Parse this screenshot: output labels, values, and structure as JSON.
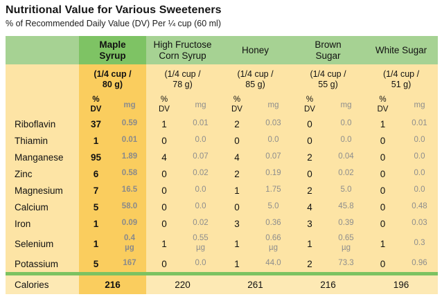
{
  "title": "Nutritional Value for Various Sweeteners",
  "subtitle": "% of Recommended Daily Value (DV) Per ¼ cup (60 ml)",
  "colors": {
    "header_green": "#a6d293",
    "maple_header_green": "#7ec364",
    "maple_column_yellow": "#facd5e",
    "body_yellow": "#fde4a5",
    "calories_yellow": "#fde9b4",
    "divider_green": "#7cc261",
    "mg_text_gray": "#8d8d8d"
  },
  "columns": [
    {
      "name": "Maple\nSyrup",
      "serving": "(1/4 cup /\n80 g)"
    },
    {
      "name": "High Fructose\nCorn Syrup",
      "serving": "(1/4 cup /\n78 g)"
    },
    {
      "name": "Honey",
      "serving": "(1/4 cup /\n85 g)"
    },
    {
      "name": "Brown\nSugar",
      "serving": "(1/4 cup /\n55 g)"
    },
    {
      "name": "White Sugar",
      "serving": "(1/4 cup /\n51 g)"
    }
  ],
  "subheader": {
    "dv": "%\nDV",
    "unit": "mg"
  },
  "rows": [
    {
      "name": "Riboflavin",
      "cells": [
        {
          "dv": "37",
          "mg": "0.59"
        },
        {
          "dv": "1",
          "mg": "0.01"
        },
        {
          "dv": "2",
          "mg": "0.03"
        },
        {
          "dv": "0",
          "mg": "0.0"
        },
        {
          "dv": "1",
          "mg": "0.01"
        }
      ]
    },
    {
      "name": "Thiamin",
      "cells": [
        {
          "dv": "1",
          "mg": "0.01"
        },
        {
          "dv": "0",
          "mg": "0.0"
        },
        {
          "dv": "0",
          "mg": "0.0"
        },
        {
          "dv": "0",
          "mg": "0.0"
        },
        {
          "dv": "0",
          "mg": "0.0"
        }
      ]
    },
    {
      "name": "Manganese",
      "cells": [
        {
          "dv": "95",
          "mg": "1.89"
        },
        {
          "dv": "4",
          "mg": "0.07"
        },
        {
          "dv": "4",
          "mg": "0.07"
        },
        {
          "dv": "2",
          "mg": "0.04"
        },
        {
          "dv": "0",
          "mg": "0.0"
        }
      ]
    },
    {
      "name": "Zinc",
      "cells": [
        {
          "dv": "6",
          "mg": "0.58"
        },
        {
          "dv": "0",
          "mg": "0.02"
        },
        {
          "dv": "2",
          "mg": "0.19"
        },
        {
          "dv": "0",
          "mg": "0.02"
        },
        {
          "dv": "0",
          "mg": "0.0"
        }
      ]
    },
    {
      "name": "Magnesium",
      "cells": [
        {
          "dv": "7",
          "mg": "16.5"
        },
        {
          "dv": "0",
          "mg": "0.0"
        },
        {
          "dv": "1",
          "mg": "1.75"
        },
        {
          "dv": "2",
          "mg": "5.0"
        },
        {
          "dv": "0",
          "mg": "0.0"
        }
      ]
    },
    {
      "name": "Calcium",
      "cells": [
        {
          "dv": "5",
          "mg": "58.0"
        },
        {
          "dv": "0",
          "mg": "0.0"
        },
        {
          "dv": "0",
          "mg": "5.0"
        },
        {
          "dv": "4",
          "mg": "45.8"
        },
        {
          "dv": "0",
          "mg": "0.48"
        }
      ]
    },
    {
      "name": "Iron",
      "cells": [
        {
          "dv": "1",
          "mg": "0.09"
        },
        {
          "dv": "0",
          "mg": "0.02"
        },
        {
          "dv": "3",
          "mg": "0.36"
        },
        {
          "dv": "3",
          "mg": "0.39"
        },
        {
          "dv": "0",
          "mg": "0.03"
        }
      ]
    },
    {
      "name": "Selenium",
      "cells": [
        {
          "dv": "1",
          "mg": "0.4\nµg"
        },
        {
          "dv": "1",
          "mg": "0.55\nµg"
        },
        {
          "dv": "1",
          "mg": "0.66\nµg"
        },
        {
          "dv": "1",
          "mg": "0.65\nµg"
        },
        {
          "dv": "1",
          "mg": "0.3"
        }
      ]
    },
    {
      "name": "Potassium",
      "cells": [
        {
          "dv": "5",
          "mg": "167"
        },
        {
          "dv": "0",
          "mg": "0.0"
        },
        {
          "dv": "1",
          "mg": "44.0"
        },
        {
          "dv": "2",
          "mg": "73.3"
        },
        {
          "dv": "0",
          "mg": "0.96"
        }
      ]
    }
  ],
  "calories": {
    "label": "Calories",
    "values": [
      "216",
      "220",
      "261",
      "216",
      "196"
    ]
  },
  "chart_data": {
    "type": "table",
    "title": "Nutritional Value for Various Sweeteners",
    "subtitle": "% of Recommended Daily Value (DV) Per ¼ cup (60 ml)",
    "columns": [
      "Maple Syrup (1/4 cup / 80 g)",
      "High Fructose Corn Syrup (1/4 cup / 78 g)",
      "Honey (1/4 cup / 85 g)",
      "Brown Sugar (1/4 cup / 55 g)",
      "White Sugar (1/4 cup / 51 g)"
    ],
    "units_per_column": [
      "% DV",
      "mg"
    ],
    "rows": [
      {
        "nutrient": "Riboflavin",
        "dv": [
          37,
          1,
          2,
          0,
          1
        ],
        "mg": [
          0.59,
          0.01,
          0.03,
          0.0,
          0.01
        ]
      },
      {
        "nutrient": "Thiamin",
        "dv": [
          1,
          0,
          0,
          0,
          0
        ],
        "mg": [
          0.01,
          0.0,
          0.0,
          0.0,
          0.0
        ]
      },
      {
        "nutrient": "Manganese",
        "dv": [
          95,
          4,
          4,
          2,
          0
        ],
        "mg": [
          1.89,
          0.07,
          0.07,
          0.04,
          0.0
        ]
      },
      {
        "nutrient": "Zinc",
        "dv": [
          6,
          0,
          2,
          0,
          0
        ],
        "mg": [
          0.58,
          0.02,
          0.19,
          0.02,
          0.0
        ]
      },
      {
        "nutrient": "Magnesium",
        "dv": [
          7,
          0,
          1,
          2,
          0
        ],
        "mg": [
          16.5,
          0.0,
          1.75,
          5.0,
          0.0
        ]
      },
      {
        "nutrient": "Calcium",
        "dv": [
          5,
          0,
          0,
          4,
          0
        ],
        "mg": [
          58.0,
          0.0,
          5.0,
          45.8,
          0.48
        ]
      },
      {
        "nutrient": "Iron",
        "dv": [
          1,
          0,
          3,
          3,
          0
        ],
        "mg": [
          0.09,
          0.02,
          0.36,
          0.39,
          0.03
        ]
      },
      {
        "nutrient": "Selenium",
        "dv": [
          1,
          1,
          1,
          1,
          1
        ],
        "mg": [
          "0.4 µg",
          "0.55 µg",
          "0.66 µg",
          "0.65 µg",
          0.3
        ]
      },
      {
        "nutrient": "Potassium",
        "dv": [
          5,
          0,
          1,
          2,
          0
        ],
        "mg": [
          167,
          0.0,
          44.0,
          73.3,
          0.96
        ]
      }
    ],
    "calories": [
      216,
      220,
      261,
      216,
      196
    ]
  }
}
